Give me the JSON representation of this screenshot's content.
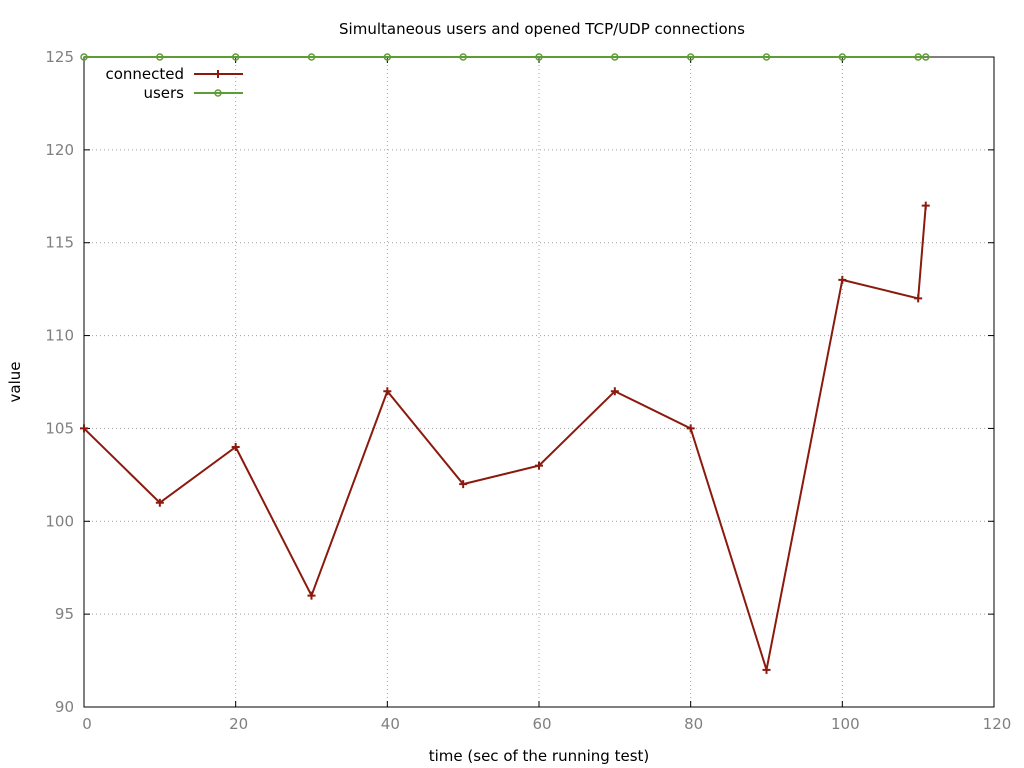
{
  "chart_data": {
    "type": "line",
    "title": "Simultaneous users and opened TCP/UDP connections",
    "xlabel": "time (sec of the running test)",
    "ylabel": "value",
    "xlim": [
      0,
      120
    ],
    "ylim": [
      90,
      125
    ],
    "xticks": [
      0,
      20,
      40,
      60,
      80,
      100,
      120
    ],
    "yticks": [
      90,
      95,
      100,
      105,
      110,
      115,
      120,
      125
    ],
    "grid": true,
    "legend_position": "top-left",
    "series": [
      {
        "name": "connected",
        "color": "#8b1a0e",
        "marker": "plus",
        "x": [
          0,
          10,
          20,
          30,
          40,
          50,
          60,
          70,
          80,
          90,
          100,
          110,
          111
        ],
        "y": [
          105,
          101,
          104,
          96,
          107,
          102,
          103,
          107,
          105,
          92,
          113,
          112,
          117
        ]
      },
      {
        "name": "users",
        "color": "#5e9c36",
        "marker": "circle",
        "x": [
          0,
          10,
          20,
          30,
          40,
          50,
          60,
          70,
          80,
          90,
          100,
          110,
          111
        ],
        "y": [
          125,
          125,
          125,
          125,
          125,
          125,
          125,
          125,
          125,
          125,
          125,
          125,
          125
        ]
      }
    ]
  }
}
